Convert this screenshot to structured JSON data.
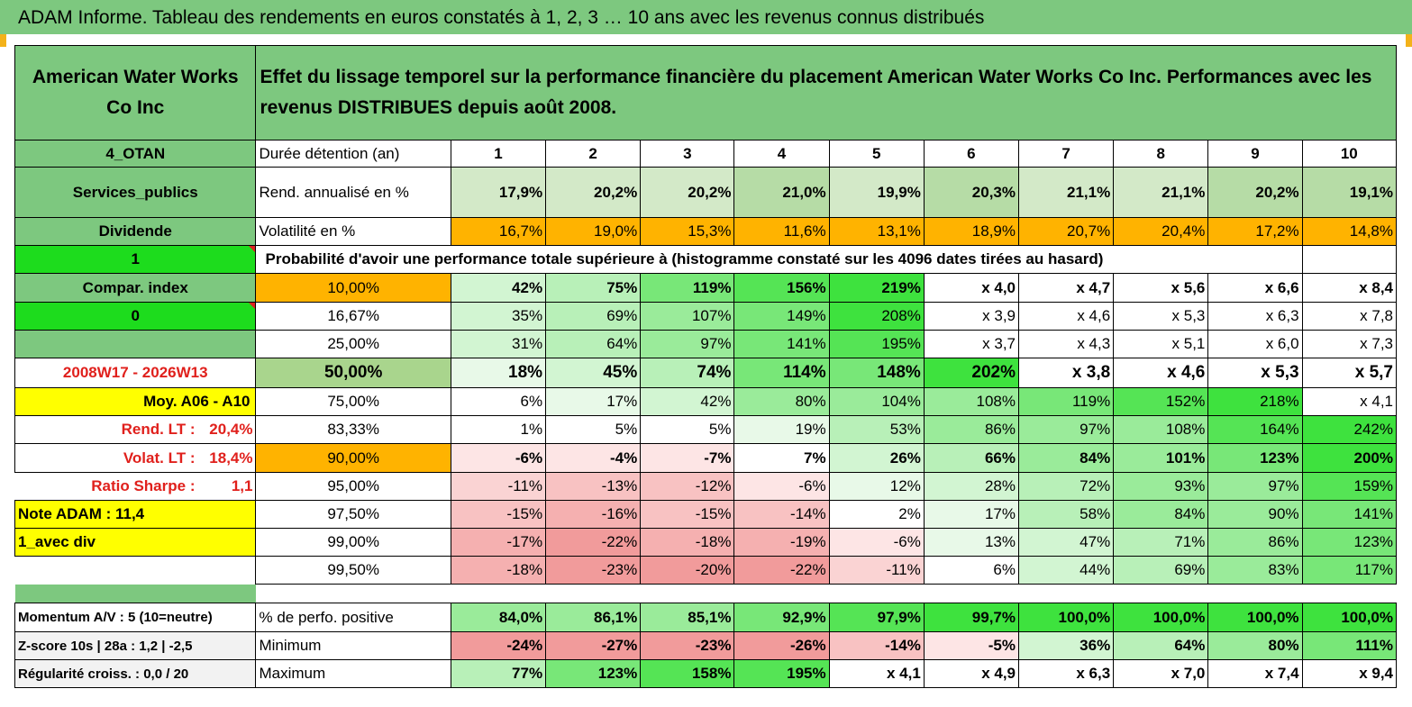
{
  "title": "ADAM Informe. Tableau des rendements en euros constatés à 1, 2, 3 … 10 ans avec les revenus connus distribués",
  "header": {
    "company": "American Water Works Co Inc",
    "description": "Effet du lissage temporel sur la performance financière du placement American Water Works Co Inc. Performances avec les revenus DISTRIBUES depuis août 2008."
  },
  "info": {
    "group": "4_OTAN",
    "sector": "Services_publics",
    "dividend": "Dividende",
    "flag1": "1",
    "compar": "Compar. index",
    "flag0": "0",
    "period": "2008W17 - 2026W13",
    "moy": "Moy. A06 - A10",
    "rend_lt_label": "Rend. LT :",
    "rend_lt_value": "20,4%",
    "volat_lt_label": "Volat. LT :",
    "volat_lt_value": "18,4%",
    "sharpe_label": "Ratio Sharpe :",
    "sharpe_value": "1,1",
    "note": "Note ADAM : 11,4",
    "avec_div": "1_avec div",
    "momentum": "Momentum A/V : 5 (10=neutre)",
    "zscore": "Z-score 10s | 28a : 1,2 | -2,5",
    "regularite": "Régularité croiss. : 0,0 / 20"
  },
  "labels": {
    "duree": "Durée détention (an)",
    "rend": "Rend. annualisé en %",
    "volat": "Volatilité en %",
    "proba": "Probabilité d'avoir une performance totale supérieure à (histogramme constaté sur les 4096 dates tirées au hasard)",
    "positive": "% de perfo. positive",
    "minimum": "Minimum",
    "maximum": "Maximum"
  },
  "years": [
    "1",
    "2",
    "3",
    "4",
    "5",
    "6",
    "7",
    "8",
    "9",
    "10"
  ],
  "rend": [
    "17,9%",
    "20,2%",
    "20,2%",
    "21,0%",
    "19,9%",
    "20,3%",
    "21,1%",
    "21,1%",
    "20,2%",
    "19,1%"
  ],
  "volat": [
    "16,7%",
    "19,0%",
    "15,3%",
    "11,6%",
    "13,1%",
    "18,9%",
    "20,7%",
    "20,4%",
    "17,2%",
    "14,8%"
  ],
  "prob_rows": [
    {
      "p": "10,00%",
      "v": [
        "42%",
        "75%",
        "119%",
        "156%",
        "219%",
        "x 4,0",
        "x 4,7",
        "x 5,6",
        "x 6,6",
        "x 8,4"
      ]
    },
    {
      "p": "16,67%",
      "v": [
        "35%",
        "69%",
        "107%",
        "149%",
        "208%",
        "x 3,9",
        "x 4,6",
        "x 5,3",
        "x 6,3",
        "x 7,8"
      ]
    },
    {
      "p": "25,00%",
      "v": [
        "31%",
        "64%",
        "97%",
        "141%",
        "195%",
        "x 3,7",
        "x 4,3",
        "x 5,1",
        "x 6,0",
        "x 7,3"
      ]
    },
    {
      "p": "50,00%",
      "v": [
        "18%",
        "45%",
        "74%",
        "114%",
        "148%",
        "202%",
        "x 3,8",
        "x 4,6",
        "x 5,3",
        "x 5,7"
      ]
    },
    {
      "p": "75,00%",
      "v": [
        "6%",
        "17%",
        "42%",
        "80%",
        "104%",
        "108%",
        "119%",
        "152%",
        "218%",
        "x 4,1"
      ]
    },
    {
      "p": "83,33%",
      "v": [
        "1%",
        "5%",
        "5%",
        "19%",
        "53%",
        "86%",
        "97%",
        "108%",
        "164%",
        "242%"
      ]
    },
    {
      "p": "90,00%",
      "v": [
        "-6%",
        "-4%",
        "-7%",
        "7%",
        "26%",
        "66%",
        "84%",
        "101%",
        "123%",
        "200%"
      ]
    },
    {
      "p": "95,00%",
      "v": [
        "-11%",
        "-13%",
        "-12%",
        "-6%",
        "12%",
        "28%",
        "72%",
        "93%",
        "97%",
        "159%"
      ]
    },
    {
      "p": "97,50%",
      "v": [
        "-15%",
        "-16%",
        "-15%",
        "-14%",
        "2%",
        "17%",
        "58%",
        "84%",
        "90%",
        "141%"
      ]
    },
    {
      "p": "99,00%",
      "v": [
        "-17%",
        "-22%",
        "-18%",
        "-19%",
        "-6%",
        "13%",
        "47%",
        "71%",
        "86%",
        "123%"
      ]
    },
    {
      "p": "99,50%",
      "v": [
        "-18%",
        "-23%",
        "-20%",
        "-22%",
        "-11%",
        "6%",
        "44%",
        "69%",
        "83%",
        "117%"
      ]
    }
  ],
  "positive": [
    "84,0%",
    "86,1%",
    "85,1%",
    "92,9%",
    "97,9%",
    "99,7%",
    "100,0%",
    "100,0%",
    "100,0%",
    "100,0%"
  ],
  "minimum": [
    "-24%",
    "-27%",
    "-23%",
    "-26%",
    "-14%",
    "-5%",
    "36%",
    "64%",
    "80%",
    "111%"
  ],
  "maximum": [
    "77%",
    "123%",
    "158%",
    "195%",
    "x 4,1",
    "x 4,9",
    "x 6,3",
    "x 7,0",
    "x 7,4",
    "x 9,4"
  ]
}
